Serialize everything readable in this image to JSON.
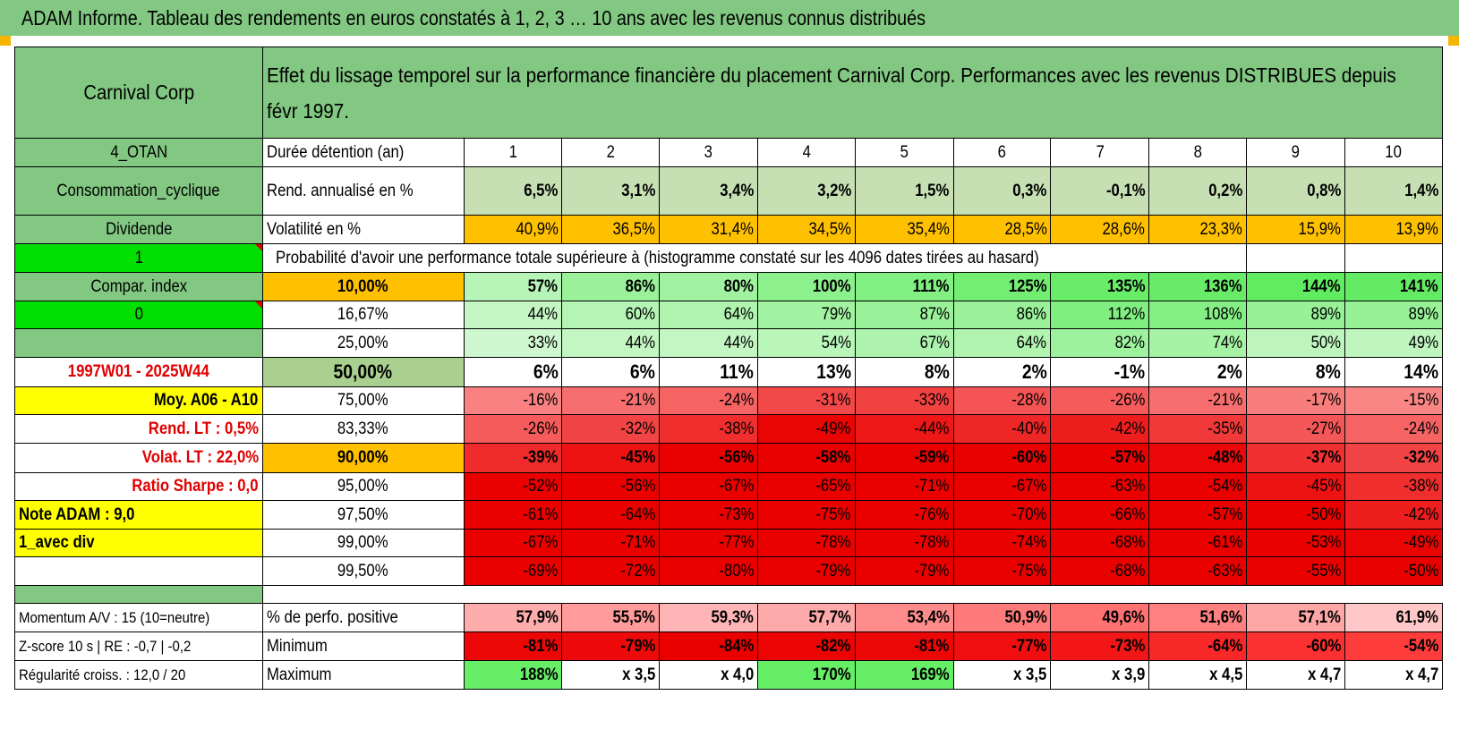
{
  "header": {
    "title": "ADAM Informe. Tableau des rendements en euros constatés à 1, 2, 3 … 10 ans avec les revenus connus distribués"
  },
  "side": {
    "name": "Carnival Corp",
    "code": "4_OTAN",
    "sector": "Consommation_cyclique",
    "type": "Dividende",
    "flag1": "1",
    "compar": "Compar. index",
    "flag0": "0",
    "period": "1997W01 - 2025W44",
    "moy": "Moy. A06 - A10",
    "rend_lt": "Rend. LT :    0,5%",
    "volat_lt": "Volat. LT :    22,0%",
    "sharpe": "Ratio Sharpe :    0,0",
    "note": "Note ADAM : 9,0",
    "avec_div": "1_avec div",
    "momentum": "Momentum A/V : 15 (10=neutre)",
    "zscore": "Z-score 10 s | RE : -0,7 | -0,2",
    "regularite": "Régularité croiss. : 12,0 / 20"
  },
  "description": "Effet du lissage temporel sur la performance financière du placement Carnival Corp. Performances avec les revenus DISTRIBUES depuis févr 1997.",
  "labels": {
    "duree": "Durée détention (an)",
    "rend": "Rend. annualisé en %",
    "volat": "Volatilité en %",
    "proba": "Probabilité d'avoir une performance totale supérieure à (histogramme constaté sur les 4096 dates tirées au hasard)",
    "pct_pos": "% de perfo. positive",
    "minimum": "Minimum",
    "maximum": "Maximum"
  },
  "years": [
    "1",
    "2",
    "3",
    "4",
    "5",
    "6",
    "7",
    "8",
    "9",
    "10"
  ],
  "rend": [
    "6,5%",
    "3,1%",
    "3,4%",
    "3,2%",
    "1,5%",
    "0,3%",
    "-0,1%",
    "0,2%",
    "0,8%",
    "1,4%"
  ],
  "volat": [
    "40,9%",
    "36,5%",
    "31,4%",
    "34,5%",
    "35,4%",
    "28,5%",
    "28,6%",
    "23,3%",
    "15,9%",
    "13,9%"
  ],
  "quantiles": [
    {
      "label": "10,00%",
      "values": [
        "57%",
        "86%",
        "80%",
        "100%",
        "111%",
        "125%",
        "135%",
        "136%",
        "144%",
        "141%"
      ]
    },
    {
      "label": "16,67%",
      "values": [
        "44%",
        "60%",
        "64%",
        "79%",
        "87%",
        "86%",
        "112%",
        "108%",
        "89%",
        "89%"
      ]
    },
    {
      "label": "25,00%",
      "values": [
        "33%",
        "44%",
        "44%",
        "54%",
        "67%",
        "64%",
        "82%",
        "74%",
        "50%",
        "49%"
      ]
    },
    {
      "label": "50,00%",
      "values": [
        "6%",
        "6%",
        "11%",
        "13%",
        "8%",
        "2%",
        "-1%",
        "2%",
        "8%",
        "14%"
      ]
    },
    {
      "label": "75,00%",
      "values": [
        "-16%",
        "-21%",
        "-24%",
        "-31%",
        "-33%",
        "-28%",
        "-26%",
        "-21%",
        "-17%",
        "-15%"
      ]
    },
    {
      "label": "83,33%",
      "values": [
        "-26%",
        "-32%",
        "-38%",
        "-49%",
        "-44%",
        "-40%",
        "-42%",
        "-35%",
        "-27%",
        "-24%"
      ]
    },
    {
      "label": "90,00%",
      "values": [
        "-39%",
        "-45%",
        "-56%",
        "-58%",
        "-59%",
        "-60%",
        "-57%",
        "-48%",
        "-37%",
        "-32%"
      ]
    },
    {
      "label": "95,00%",
      "values": [
        "-52%",
        "-56%",
        "-67%",
        "-65%",
        "-71%",
        "-67%",
        "-63%",
        "-54%",
        "-45%",
        "-38%"
      ]
    },
    {
      "label": "97,50%",
      "values": [
        "-61%",
        "-64%",
        "-73%",
        "-75%",
        "-76%",
        "-70%",
        "-66%",
        "-57%",
        "-50%",
        "-42%"
      ]
    },
    {
      "label": "99,00%",
      "values": [
        "-67%",
        "-71%",
        "-77%",
        "-78%",
        "-78%",
        "-74%",
        "-68%",
        "-61%",
        "-53%",
        "-49%"
      ]
    },
    {
      "label": "99,50%",
      "values": [
        "-69%",
        "-72%",
        "-80%",
        "-79%",
        "-79%",
        "-75%",
        "-68%",
        "-63%",
        "-55%",
        "-50%"
      ]
    }
  ],
  "pct_pos": [
    "57,9%",
    "55,5%",
    "59,3%",
    "57,7%",
    "53,4%",
    "50,9%",
    "49,6%",
    "51,6%",
    "57,1%",
    "61,9%"
  ],
  "minimum": [
    "-81%",
    "-79%",
    "-84%",
    "-82%",
    "-81%",
    "-77%",
    "-73%",
    "-64%",
    "-60%",
    "-54%"
  ],
  "maximum": [
    "188%",
    "x 3,5",
    "x 4,0",
    "170%",
    "169%",
    "x 3,5",
    "x 3,9",
    "x 4,5",
    "x 4,7",
    "x 4,7"
  ],
  "colors": {
    "header_green": "#82c882",
    "bright_green": "#00e000",
    "yellow": "#ffff00",
    "orange": "#ffc000",
    "red_text": "#e00000",
    "rend_cells": "#c6e0b4",
    "vol_cells": "#ffc000"
  }
}
